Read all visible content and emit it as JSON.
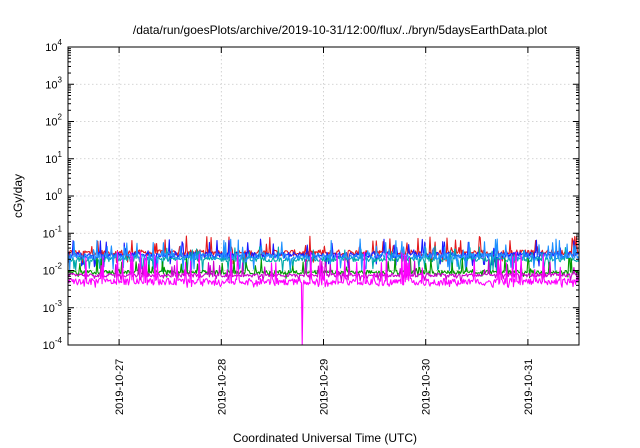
{
  "chart_data": {
    "type": "line",
    "title": "/data/run/goesPlots/archive/2019-10-31/12:00/flux/../bryn/5daysEarthData.plot",
    "xlabel": "Coordinated Universal Time (UTC)",
    "ylabel": "cGy/day",
    "x_range": [
      "2019-10-26T12:00",
      "2019-10-31T12:00"
    ],
    "ylim": [
      0.0001,
      10000
    ],
    "y_scale": "log",
    "grid": true,
    "x_tick_labels": [
      "2019-10-27",
      "2019-10-28",
      "2019-10-29",
      "2019-10-30",
      "2019-10-31"
    ],
    "x_tick_values": [
      "2019-10-27T00:00",
      "2019-10-28T00:00",
      "2019-10-29T00:00",
      "2019-10-30T00:00",
      "2019-10-31T00:00"
    ],
    "y_tick_labels": [
      {
        "base": "10",
        "exp": "-4"
      },
      {
        "base": "10",
        "exp": "-3"
      },
      {
        "base": "10",
        "exp": "-2"
      },
      {
        "base": "10",
        "exp": "-1"
      },
      {
        "base": "10",
        "exp": "0"
      },
      {
        "base": "10",
        "exp": "1"
      },
      {
        "base": "10",
        "exp": "2"
      },
      {
        "base": "10",
        "exp": "3"
      },
      {
        "base": "10",
        "exp": "4"
      }
    ],
    "series": [
      {
        "color": "#e41a1c",
        "base": 0.03,
        "jitter": 0.18,
        "spike_max": 0.085,
        "dip_min": 0.014,
        "dip_rate": 0.04
      },
      {
        "color": "#1a1aff",
        "base": 0.026,
        "jitter": 0.18,
        "spike_max": 0.07,
        "dip_min": 0.012,
        "dip_rate": 0.05
      },
      {
        "color": "#00aaaa",
        "base": 0.02,
        "jitter": 0.15,
        "spike_max": 0.045,
        "dip_min": 0.009,
        "dip_rate": 0.05
      },
      {
        "color": "#1e90ff",
        "base": 0.024,
        "jitter": 0.2,
        "spike_max": 0.07,
        "dip_min": 0.01,
        "dip_rate": 0.06
      },
      {
        "color": "#009900",
        "base": 0.009,
        "jitter": 0.12,
        "spike_max": 0.022,
        "dip_min": 0.006,
        "dip_rate": 0.03
      },
      {
        "color": "#cc00cc",
        "base": 0.0075,
        "jitter": 0.12,
        "spike_max": 0.02,
        "dip_min": 0.005,
        "dip_rate": 0.08
      },
      {
        "color": "#ff00ff",
        "base": 0.005,
        "jitter": 0.2,
        "spike_max": 0.032,
        "dip_min": 0.0035,
        "dip_rate": 0.08
      }
    ],
    "magenta_drop_time": "2019-10-28T19:00",
    "magenta_drop_value": 0.0001
  }
}
